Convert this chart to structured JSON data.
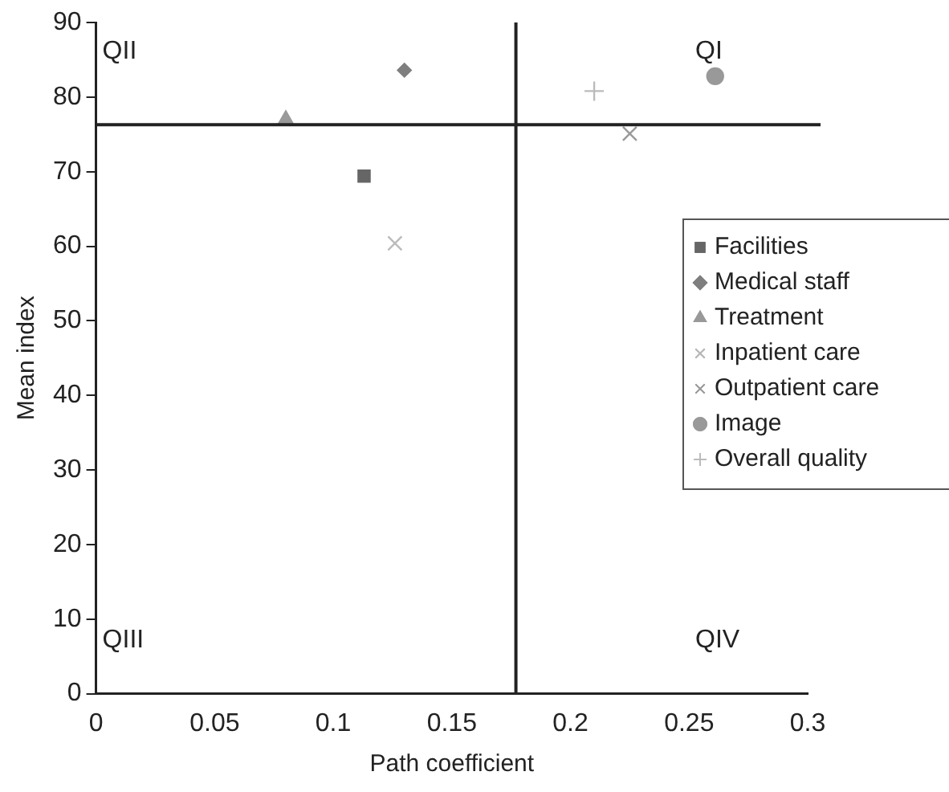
{
  "chart_data": {
    "type": "scatter",
    "xlabel": "Path coefficient",
    "ylabel": "Mean index",
    "xlim": [
      0,
      0.3
    ],
    "xticks": [
      0,
      0.05,
      0.1,
      0.15,
      0.2,
      0.25,
      0.3
    ],
    "ylim": [
      0,
      90
    ],
    "yticks": [
      0,
      10,
      20,
      30,
      40,
      50,
      60,
      70,
      80,
      90
    ],
    "grid": false,
    "legend": "right",
    "series": [
      {
        "name": "Facilities",
        "color": "#666666",
        "marker": "square",
        "x": [
          0.113
        ],
        "values": [
          69.4
        ]
      },
      {
        "name": "Medical staff",
        "color": "#7f7f7f",
        "marker": "diamond",
        "x": [
          0.13
        ],
        "values": [
          83.6
        ]
      },
      {
        "name": "Treatment",
        "color": "#999999",
        "marker": "triangle",
        "x": [
          0.08
        ],
        "values": [
          77
        ]
      },
      {
        "name": "Inpatient care",
        "color": "#bbbbbb",
        "marker": "cross",
        "x": [
          0.126
        ],
        "values": [
          60.4
        ]
      },
      {
        "name": "Outpatient care",
        "color": "#999999",
        "marker": "cross",
        "x": [
          0.225
        ],
        "values": [
          75.1
        ]
      },
      {
        "name": "Image",
        "color": "#999999",
        "marker": "circle",
        "x": [
          0.261
        ],
        "values": [
          82.8
        ]
      },
      {
        "name": "Overall quality",
        "color": "#bbbbbb",
        "marker": "plus",
        "x": [
          0.21
        ],
        "values": [
          80.8
        ]
      }
    ],
    "ref_lines": [
      {
        "axis": "x",
        "value": 0.177,
        "color": "#222222"
      },
      {
        "axis": "y",
        "value": 76.3,
        "color": "#222222"
      }
    ],
    "annotations": [
      "QII",
      "QI",
      "QIII",
      "QIV"
    ]
  }
}
